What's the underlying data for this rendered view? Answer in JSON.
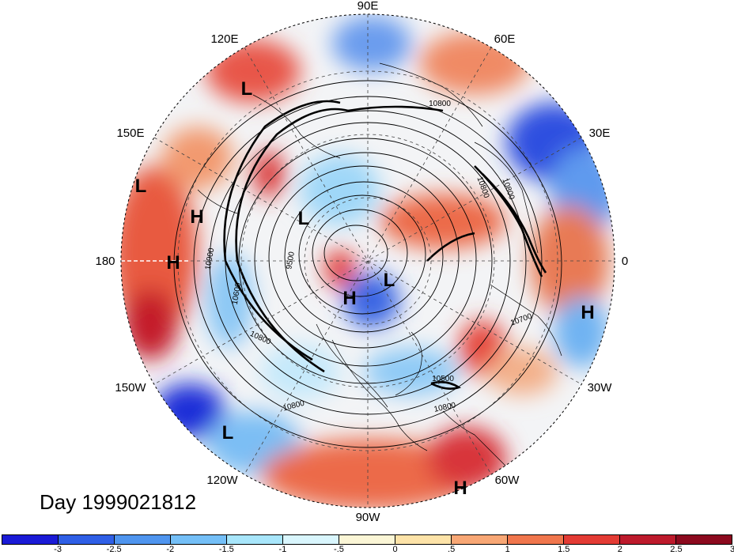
{
  "title": "Day 1999021812",
  "longitude_labels": {
    "deg90E": "90E",
    "deg60E": "60E",
    "deg30E": "30E",
    "deg0": "0",
    "deg30W": "30W",
    "deg60W": "60W",
    "deg90W": "90W",
    "deg120W": "120W",
    "deg150W": "150W",
    "deg180": "180",
    "deg150E": "150E",
    "deg120E": "120E"
  },
  "pressure_centers": [
    {
      "label": "L"
    },
    {
      "label": "L"
    },
    {
      "label": "L"
    },
    {
      "label": "L"
    },
    {
      "label": "L"
    },
    {
      "label": "H"
    },
    {
      "label": "H"
    },
    {
      "label": "H"
    },
    {
      "label": "H"
    },
    {
      "label": "H"
    }
  ],
  "contour_labels": [
    "10800",
    "10800",
    "10800",
    "10800",
    "10800",
    "10700",
    "10500",
    "10900",
    "10600",
    "9500",
    "10800"
  ],
  "colorbar": {
    "colors": [
      "#1a1ad6",
      "#2f5fe6",
      "#4f95ef",
      "#74bff7",
      "#a8e6fb",
      "#d9f6fd",
      "#fbf6d6",
      "#fde3a8",
      "#f8a775",
      "#f0764d",
      "#e33b34",
      "#bd1a2c",
      "#8c0a1e"
    ],
    "tick_labels": [
      "-3",
      "-2.5",
      "-2",
      "-1.5",
      "-1",
      "-.5",
      "0",
      ".5",
      "1",
      "1.5",
      "2",
      "2.5",
      "3"
    ]
  }
}
